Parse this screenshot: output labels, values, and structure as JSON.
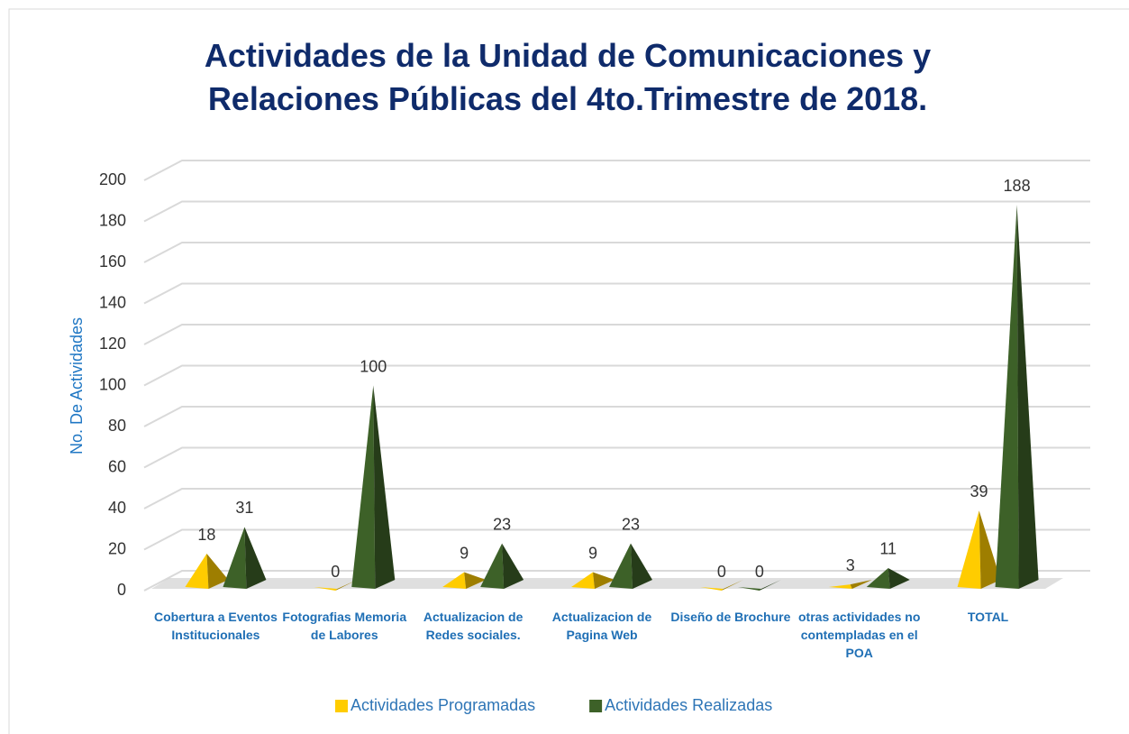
{
  "chart_data": {
    "type": "pyramid",
    "title": "Actividades de la Unidad de Comunicaciones y Relaciones Públicas del 4to.Trimestre de 2018.",
    "y_label": "No. De Actividades",
    "categories": [
      "Cobertura a Eventos Institucionales",
      "Fotografias Memoria de Labores",
      "Actualizacion de Redes sociales.",
      "Actualizacion de Pagina Web",
      "Diseño de Brochure",
      "otras actividades no contempladas en el POA",
      "TOTAL"
    ],
    "series": [
      {
        "name": "Actividades Programadas",
        "color": "#ffcc00",
        "values": [
          18,
          0,
          9,
          9,
          0,
          3,
          39
        ]
      },
      {
        "name": "Actividades Realizadas",
        "color": "#3d6128",
        "values": [
          31,
          100,
          23,
          23,
          0,
          11,
          188
        ]
      }
    ],
    "ylim": [
      0,
      200
    ],
    "yticks": [
      0,
      20,
      40,
      60,
      80,
      100,
      120,
      140,
      160,
      180,
      200
    ],
    "grid": true,
    "legend": "bottom"
  }
}
